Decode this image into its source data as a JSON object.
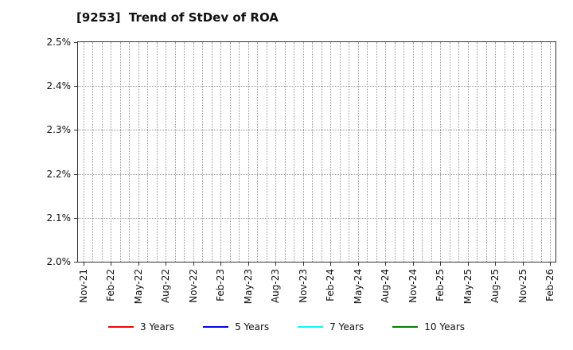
{
  "title": "[9253]  Trend of StDev of ROA",
  "chart_data": {
    "type": "line",
    "title": "[9253]  Trend of StDev of ROA",
    "x_tick_labels": [
      "Nov-21",
      "Feb-22",
      "May-22",
      "Aug-22",
      "Nov-22",
      "Feb-23",
      "May-23",
      "Aug-23",
      "Nov-23",
      "Feb-24",
      "May-24",
      "Aug-24",
      "Nov-24",
      "Feb-25",
      "May-25",
      "Aug-25",
      "Nov-25",
      "Feb-26"
    ],
    "x_months_total": 52,
    "x_label_every_months": 3,
    "ylim": [
      2.0,
      2.5
    ],
    "y_ticks": [
      2.0,
      2.1,
      2.2,
      2.3,
      2.4,
      2.5
    ],
    "y_tick_labels": [
      "2.0%",
      "2.1%",
      "2.2%",
      "2.3%",
      "2.4%",
      "2.5%"
    ],
    "grid": true,
    "grid_style": "dotted",
    "legend_position": "bottom",
    "series": [
      {
        "name": "3 Years",
        "color": "#ff0000",
        "values": []
      },
      {
        "name": "5 Years",
        "color": "#0000ff",
        "values": []
      },
      {
        "name": "7 Years",
        "color": "#00ffff",
        "values": []
      },
      {
        "name": "10 Years",
        "color": "#008000",
        "values": []
      }
    ]
  }
}
